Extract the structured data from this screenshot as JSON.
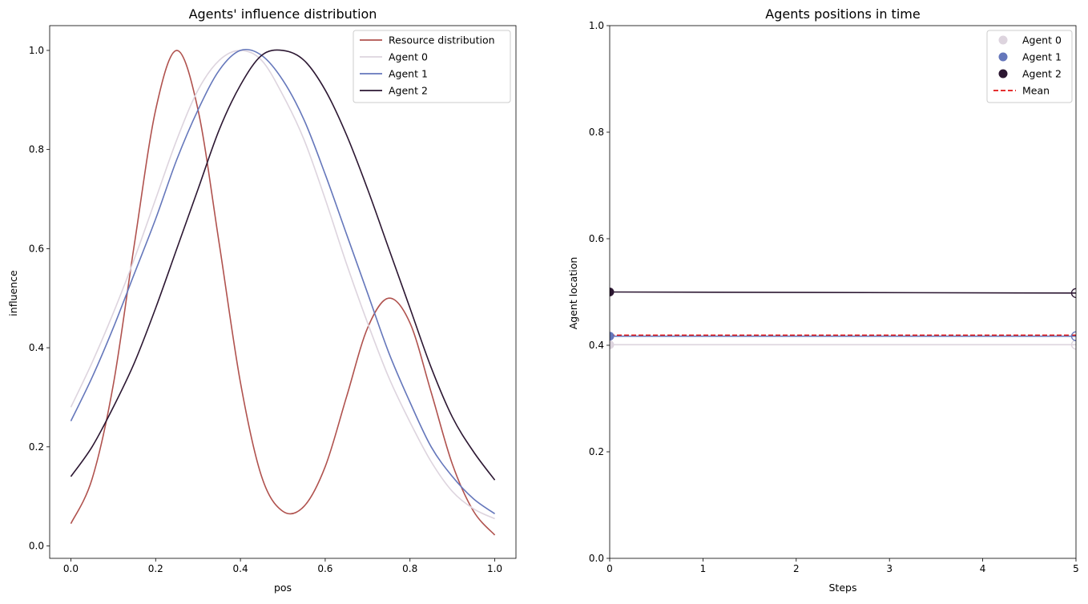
{
  "chart_data": [
    {
      "type": "line",
      "title": "Agents' influence distribution",
      "xlabel": "pos",
      "ylabel": "influence",
      "xlim": [
        -0.05,
        1.05
      ],
      "ylim": [
        -0.025,
        1.05
      ],
      "xticks": [
        0.0,
        0.2,
        0.4,
        0.6,
        0.8,
        1.0
      ],
      "xtick_labels": [
        "0.0",
        "0.2",
        "0.4",
        "0.6",
        "0.8",
        "1.0"
      ],
      "yticks": [
        0.0,
        0.2,
        0.4,
        0.6,
        0.8,
        1.0
      ],
      "ytick_labels": [
        "0.0",
        "0.2",
        "0.4",
        "0.6",
        "0.8",
        "1.0"
      ],
      "legend_position": "top-right",
      "series": [
        {
          "name": "Resource distribution",
          "color": "#b0524e",
          "x": [
            0.0,
            0.05,
            0.1,
            0.15,
            0.2,
            0.25,
            0.3,
            0.35,
            0.4,
            0.45,
            0.5,
            0.55,
            0.6,
            0.65,
            0.7,
            0.75,
            0.8,
            0.85,
            0.9,
            0.95,
            1.0
          ],
          "y": [
            0.045,
            0.135,
            0.325,
            0.61,
            0.88,
            1.0,
            0.88,
            0.61,
            0.33,
            0.14,
            0.07,
            0.08,
            0.16,
            0.3,
            0.44,
            0.5,
            0.45,
            0.31,
            0.165,
            0.07,
            0.022
          ]
        },
        {
          "name": "Agent 0",
          "color": "#ddd4de",
          "x": [
            0.0,
            0.05,
            0.1,
            0.15,
            0.2,
            0.25,
            0.3,
            0.35,
            0.4,
            0.45,
            0.5,
            0.55,
            0.6,
            0.65,
            0.7,
            0.75,
            0.8,
            0.85,
            0.9,
            0.95,
            1.0
          ],
          "y": [
            0.28,
            0.37,
            0.47,
            0.58,
            0.7,
            0.82,
            0.92,
            0.98,
            1.0,
            0.98,
            0.91,
            0.82,
            0.7,
            0.57,
            0.45,
            0.34,
            0.25,
            0.17,
            0.11,
            0.075,
            0.055
          ]
        },
        {
          "name": "Agent 1",
          "color": "#6577bb",
          "x": [
            0.0,
            0.05,
            0.1,
            0.15,
            0.2,
            0.25,
            0.3,
            0.35,
            0.4,
            0.45,
            0.5,
            0.55,
            0.6,
            0.65,
            0.7,
            0.75,
            0.8,
            0.85,
            0.9,
            0.95,
            1.0
          ],
          "y": [
            0.252,
            0.34,
            0.44,
            0.55,
            0.66,
            0.78,
            0.88,
            0.96,
            1.0,
            0.99,
            0.94,
            0.86,
            0.75,
            0.63,
            0.51,
            0.39,
            0.29,
            0.2,
            0.14,
            0.095,
            0.065
          ]
        },
        {
          "name": "Agent 2",
          "color": "#2c1732",
          "x": [
            0.0,
            0.05,
            0.1,
            0.15,
            0.2,
            0.25,
            0.3,
            0.35,
            0.4,
            0.45,
            0.5,
            0.55,
            0.6,
            0.65,
            0.7,
            0.75,
            0.8,
            0.85,
            0.9,
            0.95,
            1.0
          ],
          "y": [
            0.14,
            0.2,
            0.28,
            0.37,
            0.48,
            0.6,
            0.72,
            0.84,
            0.93,
            0.99,
            1.0,
            0.98,
            0.92,
            0.83,
            0.72,
            0.6,
            0.48,
            0.36,
            0.26,
            0.19,
            0.133
          ]
        }
      ]
    },
    {
      "type": "line",
      "title": "Agents positions in time",
      "xlabel": "Steps",
      "ylabel": "Agent location",
      "xlim": [
        0,
        5
      ],
      "ylim": [
        0.0,
        1.0
      ],
      "xticks": [
        0,
        1,
        2,
        3,
        4,
        5
      ],
      "xtick_labels": [
        "0",
        "1",
        "2",
        "3",
        "4",
        "5"
      ],
      "yticks": [
        0.0,
        0.2,
        0.4,
        0.6,
        0.8,
        1.0
      ],
      "ytick_labels": [
        "0.0",
        "0.2",
        "0.4",
        "0.6",
        "0.8",
        "1.0"
      ],
      "legend_position": "top-right",
      "series": [
        {
          "name": "Agent 0",
          "color": "#ddd4de",
          "x": [
            0,
            5
          ],
          "y": [
            0.401,
            0.401
          ]
        },
        {
          "name": "Agent 1",
          "color": "#6577bb",
          "x": [
            0,
            5
          ],
          "y": [
            0.417,
            0.417
          ]
        },
        {
          "name": "Agent 2",
          "color": "#2c1732",
          "x": [
            0,
            5
          ],
          "y": [
            0.5,
            0.498
          ]
        }
      ],
      "mean": {
        "name": "Mean",
        "color": "#e01414",
        "value": 0.419
      }
    }
  ]
}
